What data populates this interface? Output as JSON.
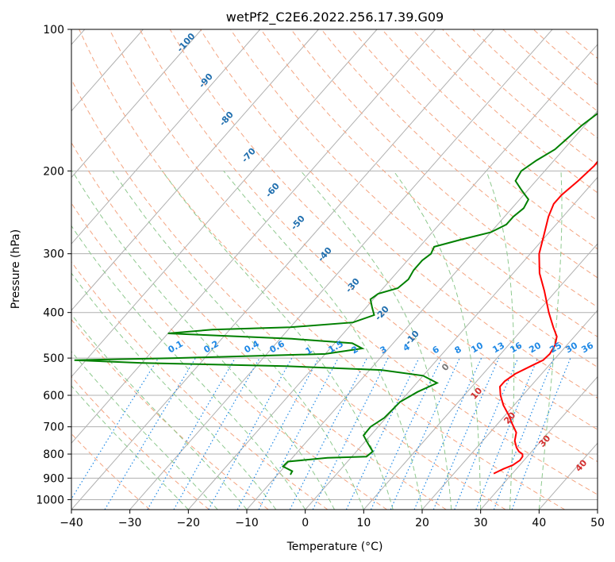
{
  "chart_data": {
    "type": "line",
    "subtype": "skew-t log-p diagram",
    "title": "wetPf2_C2E6.2022.256.17.39.G09",
    "xlabel": "Temperature (°C)",
    "ylabel": "Pressure (hPa)",
    "xlim": [
      -40,
      50
    ],
    "ylim": [
      1050,
      100
    ],
    "y_scale": "log",
    "grid": true,
    "x_ticks": [
      -40,
      -30,
      -20,
      -10,
      0,
      10,
      20,
      30,
      40,
      50
    ],
    "y_ticks": [
      100,
      200,
      300,
      400,
      500,
      600,
      700,
      800,
      900,
      1000
    ],
    "series": [
      {
        "color": "#ff0000",
        "points": [
          [
            26.8,
            880
          ],
          [
            27.8,
            860
          ],
          [
            28.8,
            845
          ],
          [
            29.3,
            825
          ],
          [
            29.2,
            810
          ],
          [
            28.8,
            800
          ],
          [
            27.8,
            790
          ],
          [
            26.8,
            775
          ],
          [
            25.5,
            750
          ],
          [
            24.5,
            720
          ],
          [
            22.5,
            690
          ],
          [
            20.5,
            660
          ],
          [
            18.2,
            630
          ],
          [
            16.2,
            600
          ],
          [
            14.8,
            575
          ],
          [
            14.8,
            560
          ],
          [
            15.5,
            540
          ],
          [
            17.0,
            520
          ],
          [
            18.2,
            505
          ],
          [
            18.4,
            490
          ],
          [
            18.0,
            470
          ],
          [
            17.0,
            450
          ],
          [
            15.0,
            430
          ],
          [
            12.0,
            400
          ],
          [
            8.0,
            360
          ],
          [
            4.5,
            330
          ],
          [
            1.5,
            300
          ],
          [
            -0.8,
            270
          ],
          [
            -2.5,
            250
          ],
          [
            -3.5,
            235
          ],
          [
            -3.5,
            225
          ],
          [
            -2.8,
            210
          ],
          [
            -2.3,
            195
          ],
          [
            -2.5,
            180
          ],
          [
            -2.8,
            165
          ],
          [
            -3.2,
            150
          ],
          [
            -3.8,
            138
          ],
          [
            -5.0,
            130
          ],
          [
            -6.5,
            125
          ],
          [
            -7.0,
            120
          ],
          [
            -6.8,
            115
          ],
          [
            -5.5,
            112
          ],
          [
            -4.0,
            110
          ],
          [
            -2.0,
            105
          ],
          [
            -1.0,
            100
          ]
        ]
      },
      {
        "color": "#008000",
        "points": [
          [
            -7.8,
            885
          ],
          [
            -8.0,
            870
          ],
          [
            -10.3,
            850
          ],
          [
            -10.2,
            830
          ],
          [
            -4.0,
            815
          ],
          [
            2.5,
            810
          ],
          [
            2.8,
            790
          ],
          [
            0.8,
            760
          ],
          [
            -1.2,
            730
          ],
          [
            -1.3,
            700
          ],
          [
            -0.3,
            670
          ],
          [
            -0.1,
            640
          ],
          [
            0.0,
            620
          ],
          [
            1.5,
            590
          ],
          [
            3.5,
            565
          ],
          [
            0.0,
            545
          ],
          [
            -8.0,
            530
          ],
          [
            -25.0,
            520
          ],
          [
            -50.0,
            512
          ],
          [
            -62.0,
            505
          ],
          [
            -45.0,
            500
          ],
          [
            -20.0,
            490
          ],
          [
            -14.5,
            477
          ],
          [
            -17.0,
            465
          ],
          [
            -28.0,
            455
          ],
          [
            -50.0,
            443
          ],
          [
            -43.0,
            435
          ],
          [
            -30.0,
            430
          ],
          [
            -20.0,
            420
          ],
          [
            -17.5,
            405
          ],
          [
            -19.0,
            390
          ],
          [
            -20.5,
            375
          ],
          [
            -20.0,
            365
          ],
          [
            -17.5,
            355
          ],
          [
            -17.0,
            340
          ],
          [
            -17.5,
            325
          ],
          [
            -17.5,
            310
          ],
          [
            -17.0,
            300
          ],
          [
            -17.5,
            290
          ],
          [
            -14.0,
            280
          ],
          [
            -10.0,
            270
          ],
          [
            -8.5,
            260
          ],
          [
            -8.5,
            250
          ],
          [
            -8.0,
            240
          ],
          [
            -8.5,
            230
          ],
          [
            -11.0,
            220
          ],
          [
            -13.5,
            210
          ],
          [
            -14.0,
            200
          ],
          [
            -13.0,
            190
          ],
          [
            -11.5,
            180
          ],
          [
            -11.0,
            170
          ],
          [
            -10.5,
            160
          ],
          [
            -9.5,
            150
          ],
          [
            -7.5,
            140
          ],
          [
            -4.5,
            130
          ],
          [
            -3.0,
            120
          ],
          [
            -1.5,
            110
          ],
          [
            -0.5,
            100
          ]
        ]
      }
    ],
    "dry_adiabat_labels": [
      "-100",
      "-90",
      "-80",
      "-70",
      "-60",
      "-50",
      "-40",
      "-30",
      "-20",
      "-10",
      "0",
      "10",
      "20",
      "30",
      "40"
    ],
    "mixing_ratio_labels": [
      "0.1",
      "0.2",
      "0.4",
      "0.6",
      "1",
      "1.5",
      "2",
      "3",
      "4",
      "6",
      "8",
      "10",
      "13",
      "16",
      "20",
      "25",
      "30",
      "36"
    ]
  },
  "colors": {
    "temperature": "#ff0000",
    "dewpoint": "#008000",
    "grid": "#b0b0b0",
    "dry_adiabat": "#f4a582",
    "moist_adiabat": "#8fc98f",
    "mixing_ratio": "#1e88e5",
    "adiabat_label_cold": "#1f6eae",
    "adiabat_label_warm": "#d32f2f",
    "adiabat_label_zero": "#777777"
  }
}
